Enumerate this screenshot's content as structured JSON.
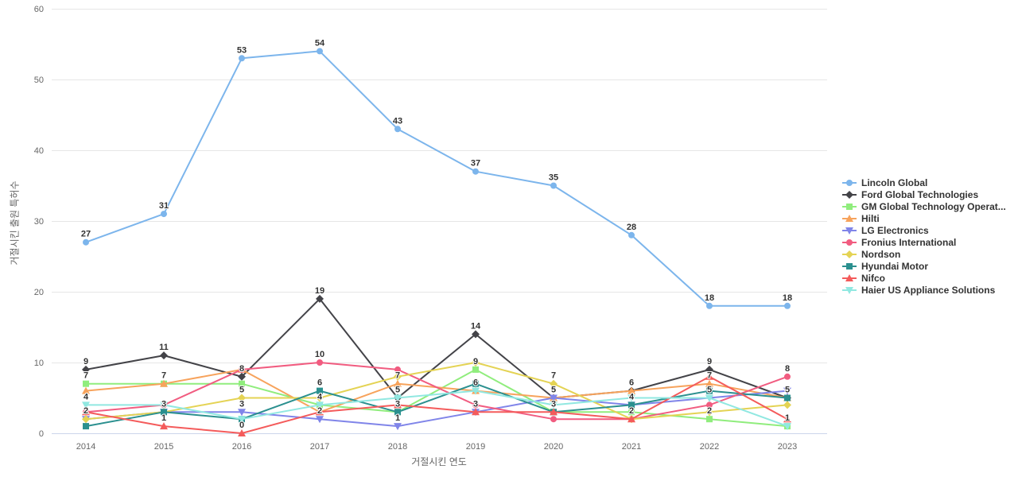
{
  "chart_data": {
    "type": "line",
    "title": "",
    "xlabel": "거절시킨 연도",
    "ylabel": "거절시킨 출원 특허수",
    "x": [
      2014,
      2015,
      2016,
      2017,
      2018,
      2019,
      2020,
      2021,
      2022,
      2023
    ],
    "ylim": [
      0,
      60
    ],
    "yticks": [
      0,
      10,
      20,
      30,
      40,
      50,
      60
    ],
    "grid": true,
    "legend_position": "right",
    "series": [
      {
        "name": "Lincoln Global",
        "color": "#7cb5ec",
        "marker": "circle",
        "values": [
          27,
          31,
          53,
          54,
          43,
          37,
          35,
          28,
          18,
          18
        ],
        "labels_shown": [
          1,
          1,
          1,
          1,
          1,
          1,
          1,
          1,
          1,
          1
        ]
      },
      {
        "name": "Ford Global Technologies",
        "color": "#434348",
        "marker": "diamond",
        "values": [
          9,
          11,
          8,
          19,
          5,
          14,
          5,
          6,
          9,
          5
        ],
        "labels_shown": [
          1,
          1,
          1,
          1,
          1,
          1,
          1,
          1,
          1,
          1
        ]
      },
      {
        "name": "GM Global Technology Operat...",
        "color": "#90ed7d",
        "marker": "square",
        "values": [
          7,
          7,
          7,
          4,
          3,
          9,
          3,
          3,
          2,
          1
        ],
        "labels_shown": [
          1,
          1,
          0,
          1,
          0,
          1,
          1,
          0,
          1,
          1
        ]
      },
      {
        "name": "Hilti",
        "color": "#f7a35c",
        "marker": "triangle",
        "values": [
          6,
          7,
          9,
          3,
          7,
          6,
          5,
          6,
          7,
          5
        ],
        "labels_shown": [
          0,
          0,
          0,
          0,
          1,
          1,
          0,
          0,
          1,
          0
        ]
      },
      {
        "name": "LG Electronics",
        "color": "#8085e9",
        "marker": "triangle-down",
        "values": [
          2,
          3,
          3,
          2,
          1,
          3,
          5,
          4,
          5,
          6
        ],
        "labels_shown": [
          1,
          0,
          1,
          1,
          1,
          1,
          0,
          1,
          1,
          0
        ]
      },
      {
        "name": "Fronius International",
        "color": "#f15c80",
        "marker": "circle",
        "values": [
          3,
          4,
          9,
          10,
          9,
          4,
          2,
          2,
          4,
          8
        ],
        "labels_shown": [
          0,
          0,
          0,
          1,
          0,
          0,
          0,
          1,
          0,
          1
        ]
      },
      {
        "name": "Nordson",
        "color": "#e4d354",
        "marker": "diamond",
        "values": [
          2,
          3,
          5,
          5,
          8,
          10,
          7,
          2,
          3,
          4
        ],
        "labels_shown": [
          0,
          0,
          1,
          0,
          0,
          0,
          1,
          0,
          0,
          0
        ]
      },
      {
        "name": "Hyundai Motor",
        "color": "#2b908f",
        "marker": "square",
        "values": [
          1,
          3,
          2,
          6,
          3,
          7,
          3,
          4,
          6,
          5
        ],
        "labels_shown": [
          0,
          1,
          0,
          1,
          1,
          0,
          0,
          0,
          0,
          0
        ]
      },
      {
        "name": "Nifco",
        "color": "#f45b5b",
        "marker": "triangle",
        "values": [
          3,
          1,
          0,
          3,
          4,
          3,
          3,
          2,
          8,
          2
        ],
        "labels_shown": [
          0,
          1,
          1,
          0,
          0,
          0,
          0,
          0,
          0,
          0
        ]
      },
      {
        "name": "Haier US Appliance Solutions",
        "color": "#91e8e1",
        "marker": "triangle-down",
        "values": [
          4,
          4,
          2,
          4,
          5,
          6,
          4,
          5,
          5,
          1
        ],
        "labels_shown": [
          1,
          0,
          0,
          0,
          0,
          0,
          0,
          0,
          0,
          0
        ]
      }
    ]
  }
}
